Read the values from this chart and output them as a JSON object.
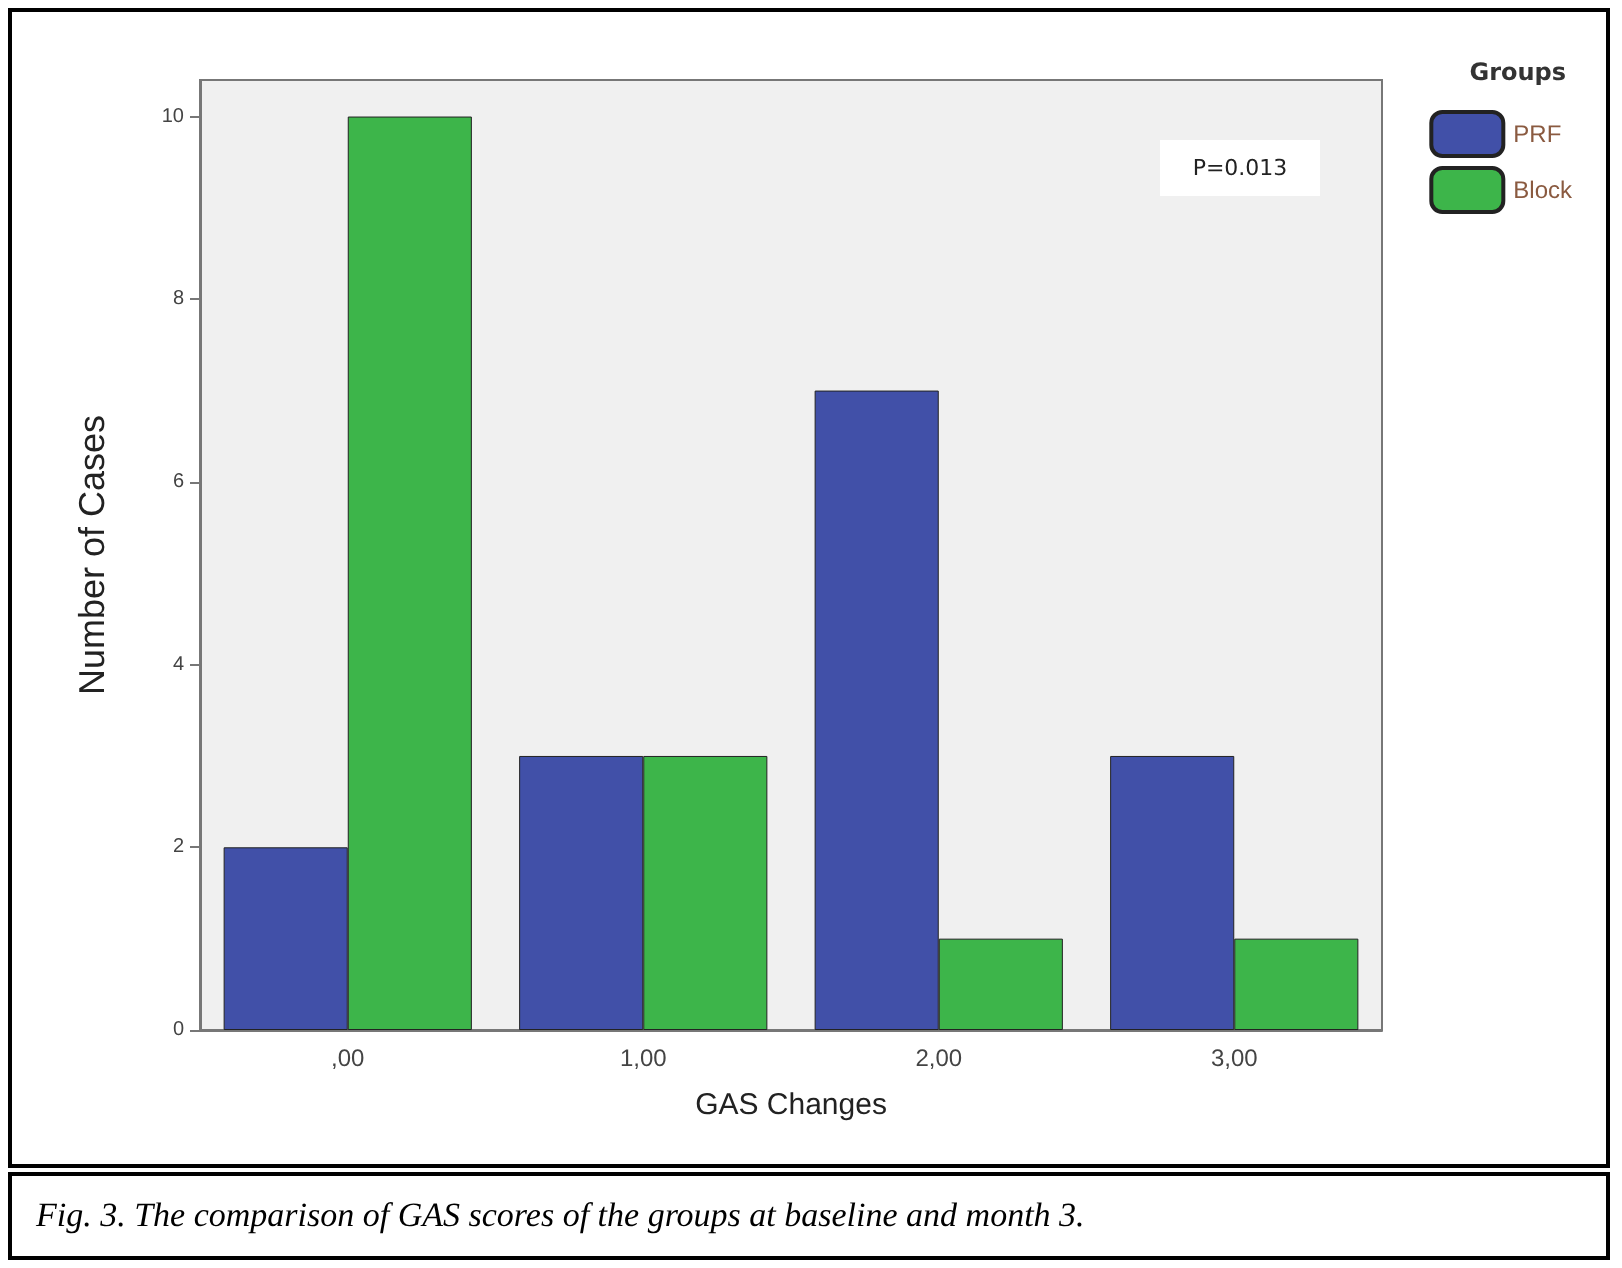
{
  "chart_data": {
    "type": "bar",
    "xlabel": "GAS Changes",
    "ylabel": "Number of Cases",
    "legend_title": "Groups",
    "categories": [
      ",00",
      "1,00",
      "2,00",
      "3,00"
    ],
    "series": [
      {
        "name": "PRF",
        "color": "#4150a8",
        "values": [
          2,
          3,
          7,
          3
        ]
      },
      {
        "name": "Block",
        "color": "#3db54a",
        "values": [
          10,
          3,
          1,
          1
        ]
      }
    ],
    "ylim": [
      0,
      10.4
    ],
    "yticks": [
      0,
      2,
      4,
      6,
      8,
      10
    ],
    "grid": false,
    "legend": "top right",
    "annotations": [
      "P=0.013",
      "Fig. 3. The comparison of GAS scores of the groups at baseline and month 3."
    ]
  }
}
